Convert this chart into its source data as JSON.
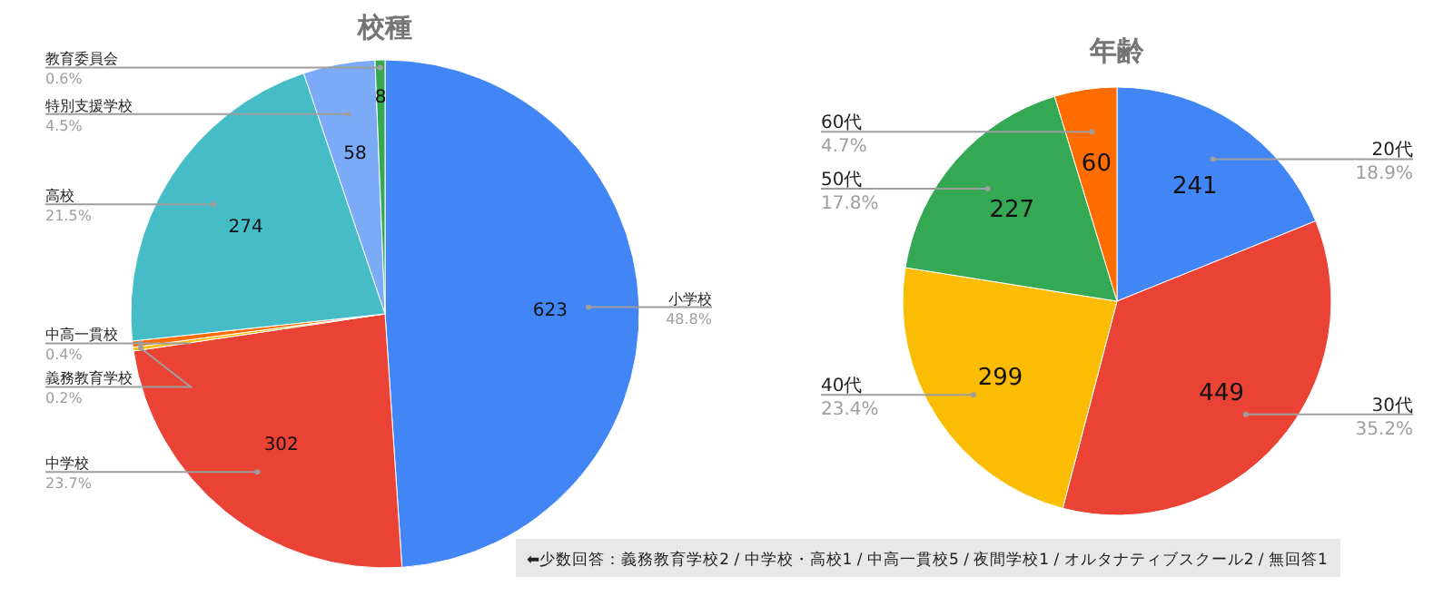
{
  "chart_data": [
    {
      "type": "pie",
      "title": "校種",
      "categories": [
        "小学校",
        "中学校",
        "義務教育学校",
        "中高一貫校",
        "高校",
        "特別支援学校",
        "教育委員会"
      ],
      "values": [
        623,
        302,
        3,
        5,
        274,
        58,
        8
      ],
      "value_labels": [
        "623",
        "302",
        null,
        null,
        "274",
        "58",
        "8"
      ],
      "colors": [
        "#4285f4",
        "#ea4335",
        "#fbbc04",
        "#ff6d01",
        "#46bdc6",
        "#7baaf7",
        "#34a853"
      ],
      "annotations": [
        {
          "text": "48.8%",
          "x": "小学校"
        },
        {
          "text": "23.7%",
          "x": "中学校"
        },
        {
          "text": "0.2%",
          "x": "義務教育学校"
        },
        {
          "text": "0.4%",
          "x": "中高一貫校"
        },
        {
          "text": "21.5%",
          "x": "高校"
        },
        {
          "text": "4.5%",
          "x": "特別支援学校"
        },
        {
          "text": "0.6%",
          "x": "教育委員会"
        },
        "⬅少数回答：義務教育学校2 / 中学校・高校1 / 中高一貫校5 / 夜間学校1 / オルタナティブスクール2 / 無回答1"
      ]
    },
    {
      "type": "pie",
      "title": "年齢",
      "categories": [
        "20代",
        "30代",
        "40代",
        "50代",
        "60代"
      ],
      "values": [
        241,
        449,
        299,
        227,
        60
      ],
      "value_labels": [
        "241",
        "449",
        "299",
        "227",
        "60"
      ],
      "colors": [
        "#4285f4",
        "#ea4335",
        "#fbbc04",
        "#34a853",
        "#ff6d01"
      ],
      "annotations": [
        {
          "text": "18.9%",
          "x": "20代"
        },
        {
          "text": "35.2%",
          "x": "30代"
        },
        {
          "text": "23.4%",
          "x": "40代"
        },
        {
          "text": "17.8%",
          "x": "50代"
        },
        {
          "text": "4.7%",
          "x": "60代"
        }
      ]
    }
  ]
}
